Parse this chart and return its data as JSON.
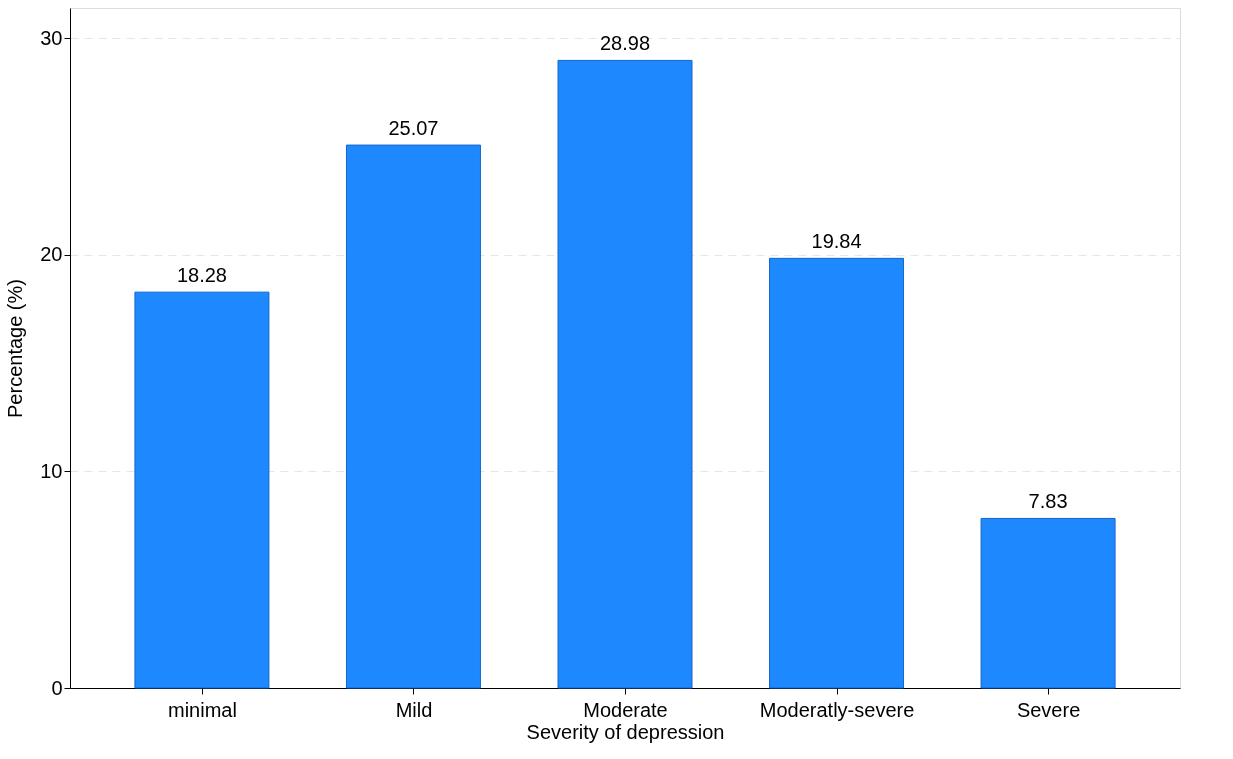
{
  "chart_data": {
    "type": "bar",
    "xlabel": "Severity of depression",
    "ylabel": "Percentage (%)",
    "categories": [
      "minimal",
      "Mild",
      "Moderate",
      "Moderatly-severe",
      "Severe"
    ],
    "values": [
      18.28,
      25.07,
      28.98,
      19.84,
      7.83
    ],
    "color": "#1e88ff",
    "ylim": [
      0,
      31.4
    ],
    "yticks": [
      0,
      10,
      20,
      30
    ],
    "grid": "y",
    "data_labels": true
  }
}
